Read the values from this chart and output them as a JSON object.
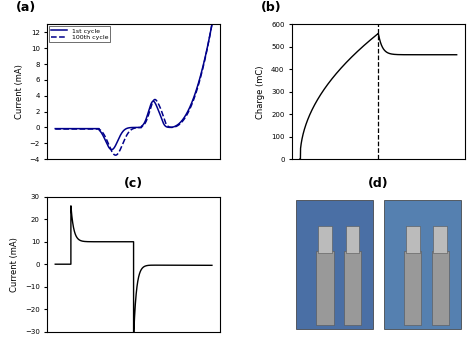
{
  "panel_a": {
    "title": "(a)",
    "ylabel": "Current (mA)",
    "ylim": [
      -4,
      13
    ],
    "yticks": [
      -4,
      -2,
      0,
      2,
      4,
      6,
      8,
      10,
      12
    ],
    "legend": [
      "1st cycle",
      "100th cycle"
    ],
    "color": "#00008B"
  },
  "panel_b": {
    "title": "(b)",
    "ylabel": "Charge (mC)",
    "ylim": [
      0,
      600
    ],
    "yticks": [
      0,
      100,
      200,
      300,
      400,
      500,
      600
    ],
    "color": "#000000"
  },
  "panel_c": {
    "title": "(c)",
    "ylabel": "Current (mA)",
    "ylim": [
      -30,
      30
    ],
    "yticks": [
      -30,
      -20,
      -10,
      0,
      10,
      20,
      30
    ],
    "color": "#000000"
  },
  "panel_d": {
    "title": "(d)"
  }
}
